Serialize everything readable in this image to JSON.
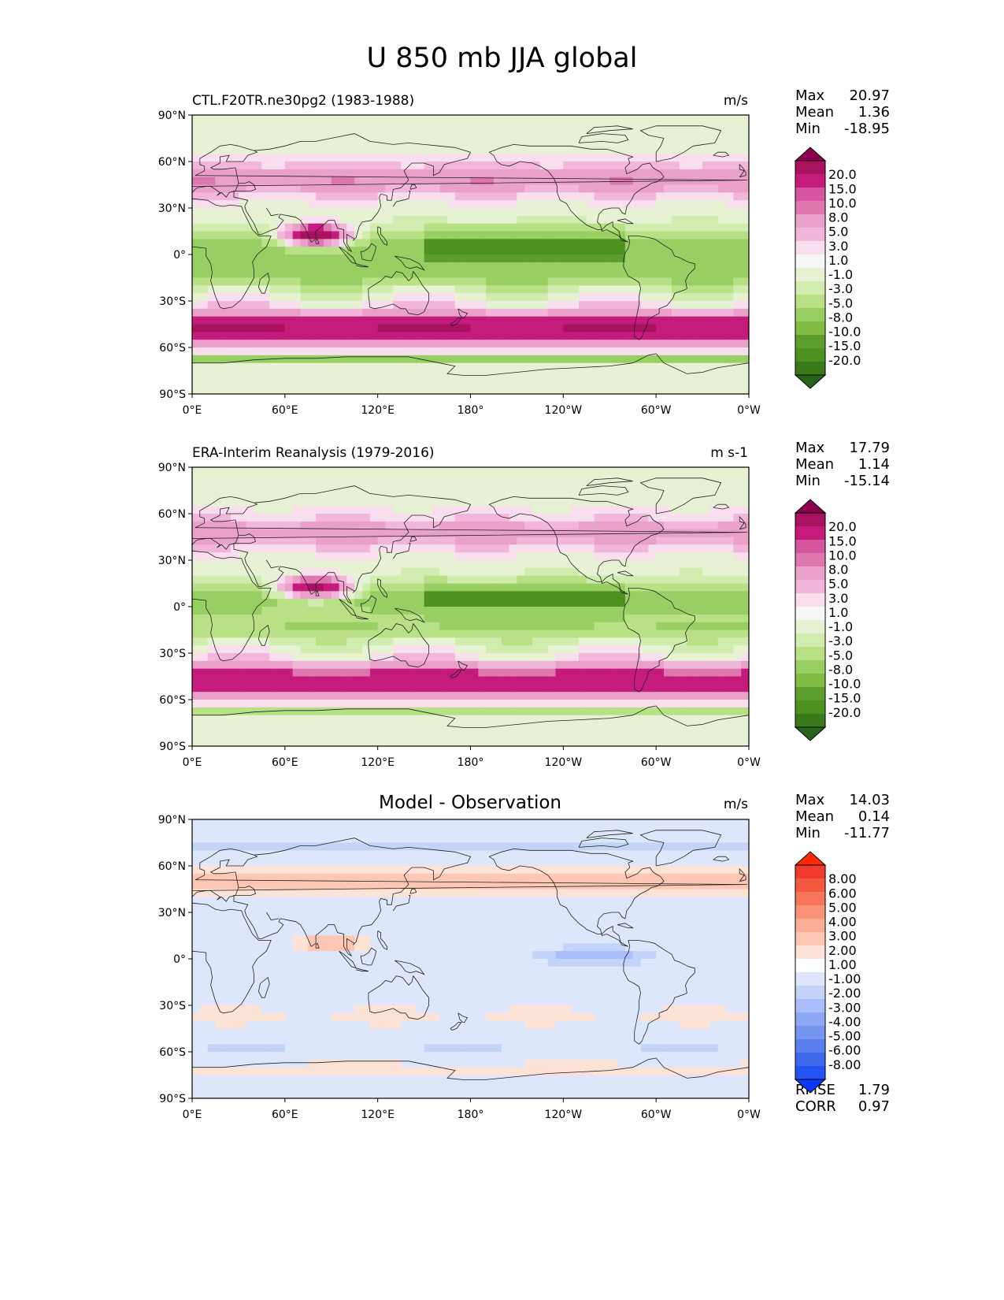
{
  "title": "U 850 mb JJA global",
  "axis_labels": {
    "lat": [
      "90°N",
      "60°N",
      "30°N",
      "0°",
      "30°S",
      "60°S",
      "90°S"
    ],
    "lon": [
      "0°E",
      "60°E",
      "120°E",
      "180°",
      "120°W",
      "60°W",
      "0°W"
    ]
  },
  "chart_data": [
    {
      "type": "heatmap",
      "title": "CTL.F20TR.ne30pg2 (1983-1988)",
      "units": "m/s",
      "stats": {
        "Max": "20.97",
        "Mean": "1.36",
        "Min": "-18.95"
      },
      "colorbar_levels": [
        "20.0",
        "15.0",
        "10.0",
        "8.0",
        "5.0",
        "3.0",
        "1.0",
        "-1.0",
        "-3.0",
        "-5.0",
        "-8.0",
        "-10.0",
        "-15.0",
        "-20.0"
      ],
      "colors": [
        "#8e0152",
        "#a9125f",
        "#c51b7d",
        "#d6579f",
        "#de77ae",
        "#eaa1c9",
        "#f1b6da",
        "#f9dfee",
        "#f7f7f7",
        "#e6f2d2",
        "#d2ecb0",
        "#b8e186",
        "#98cf62",
        "#7fbc41",
        "#5c9d2e",
        "#4d9221",
        "#3a7a1a",
        "#276419"
      ],
      "xlim": [
        0,
        360
      ],
      "ylim": [
        -90,
        90
      ]
    },
    {
      "type": "heatmap",
      "title": "ERA-Interim Reanalysis (1979-2016)",
      "units": "m s-1",
      "stats": {
        "Max": "17.79",
        "Mean": "1.14",
        "Min": "-15.14"
      },
      "colorbar_levels": [
        "20.0",
        "15.0",
        "10.0",
        "8.0",
        "5.0",
        "3.0",
        "1.0",
        "-1.0",
        "-3.0",
        "-5.0",
        "-8.0",
        "-10.0",
        "-15.0",
        "-20.0"
      ],
      "colors": [
        "#8e0152",
        "#a9125f",
        "#c51b7d",
        "#d6579f",
        "#de77ae",
        "#eaa1c9",
        "#f1b6da",
        "#f9dfee",
        "#f7f7f7",
        "#e6f2d2",
        "#d2ecb0",
        "#b8e186",
        "#98cf62",
        "#7fbc41",
        "#5c9d2e",
        "#4d9221",
        "#3a7a1a",
        "#276419"
      ],
      "xlim": [
        0,
        360
      ],
      "ylim": [
        -90,
        90
      ]
    },
    {
      "type": "heatmap",
      "title": "Model - Observation",
      "units": "m/s",
      "stats": {
        "Max": "14.03",
        "Mean": "0.14",
        "Min": "-11.77"
      },
      "extra_stats": {
        "RMSE": "1.79",
        "CORR": "0.97"
      },
      "colorbar_levels": [
        "8.00",
        "6.00",
        "5.00",
        "4.00",
        "3.00",
        "2.00",
        "1.00",
        "-1.00",
        "-2.00",
        "-3.00",
        "-4.00",
        "-5.00",
        "-6.00",
        "-8.00"
      ],
      "colors": [
        "#ff2a00",
        "#ef3b2c",
        "#f45a40",
        "#f7755a",
        "#fa9277",
        "#fbac95",
        "#fdc7b4",
        "#fde2d6",
        "#ffffff",
        "#dde6fb",
        "#c4d3f8",
        "#a9befa",
        "#8fa8f5",
        "#7595f1",
        "#5a7fee",
        "#3f69ec",
        "#2353f0",
        "#0a37ff"
      ],
      "xlim": [
        0,
        360
      ],
      "ylim": [
        -90,
        90
      ]
    }
  ]
}
